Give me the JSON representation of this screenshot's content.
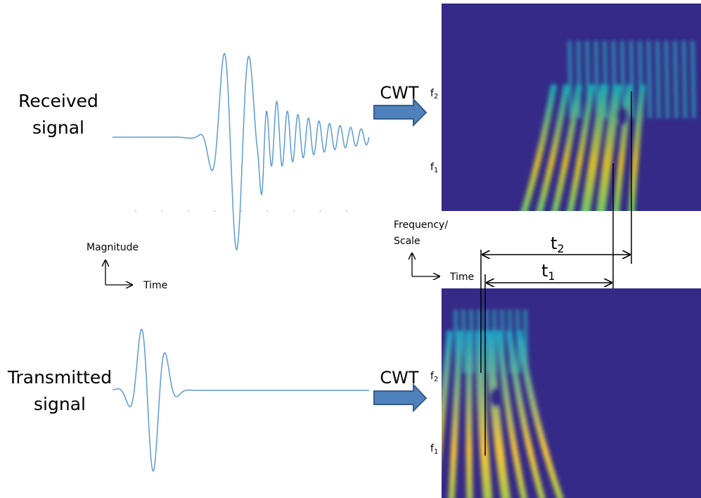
{
  "received_signal": {
    "label_lines": [
      "Received",
      "signal"
    ],
    "transform_label": "CWT",
    "frequency_labels": [
      {
        "symbol": "f",
        "subscript": "2"
      },
      {
        "symbol": "f",
        "subscript": "1"
      }
    ]
  },
  "transmitted_signal": {
    "label_lines": [
      "Transmitted",
      "signal"
    ],
    "transform_label": "CWT",
    "frequency_labels": [
      {
        "symbol": "f",
        "subscript": "2"
      },
      {
        "symbol": "f",
        "subscript": "1"
      }
    ]
  },
  "waveform_axes": {
    "y_label": "Magnitude",
    "x_label": "Time"
  },
  "scalogram_axes": {
    "y_label_lines": [
      "Frequency/",
      "Scale"
    ],
    "x_label": "Time"
  },
  "time_delays": [
    {
      "symbol": "t",
      "subscript": "2"
    },
    {
      "symbol": "t",
      "subscript": "1"
    }
  ]
}
